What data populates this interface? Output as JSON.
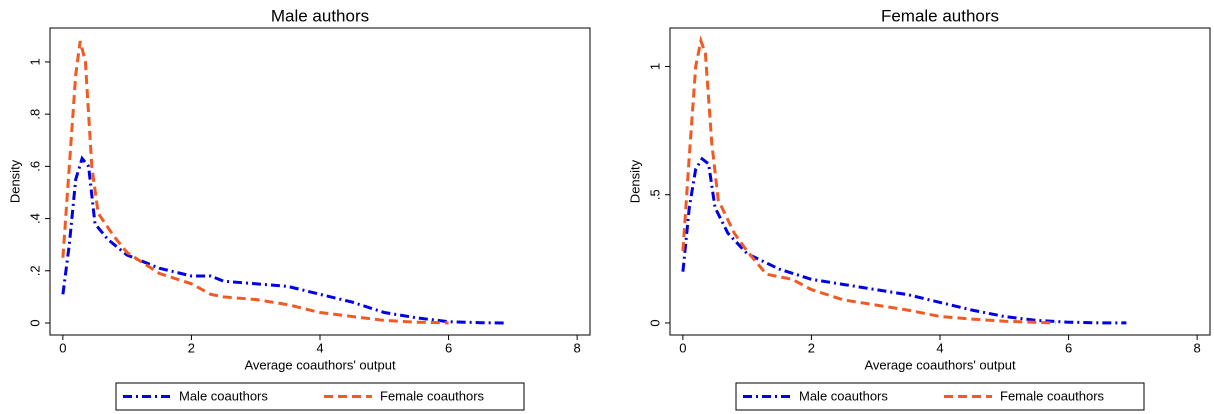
{
  "chart_data": [
    {
      "type": "line",
      "title": "Male authors",
      "xlabel": "Average coauthors' output",
      "ylabel": "Density",
      "xlim": [
        -0.2,
        8.2
      ],
      "ylim": [
        -0.046,
        1.13
      ],
      "xticks": [
        0,
        2,
        4,
        6,
        8
      ],
      "yticks": [
        0,
        {
          "value": 0.2,
          "label": ".2"
        },
        {
          "value": 0.4,
          "label": ".4"
        },
        {
          "value": 0.6,
          "label": ".6"
        },
        {
          "value": 0.8,
          "label": ".8"
        },
        1
      ],
      "legend": "bottom",
      "series": [
        {
          "name": "Male coauthors",
          "color": "#0000e6",
          "linestyle": "dashdot",
          "x": [
            0,
            0.1,
            0.2,
            0.3,
            0.4,
            0.5,
            0.7,
            1.0,
            1.5,
            2.0,
            2.3,
            2.5,
            3.0,
            3.5,
            4.0,
            4.5,
            5.0,
            5.5,
            6.0,
            6.5,
            6.9
          ],
          "values": [
            0.11,
            0.3,
            0.55,
            0.63,
            0.6,
            0.38,
            0.32,
            0.26,
            0.21,
            0.18,
            0.18,
            0.16,
            0.15,
            0.14,
            0.11,
            0.08,
            0.04,
            0.02,
            0.005,
            0.001,
            0
          ]
        },
        {
          "name": "Female coauthors",
          "color": "#f25a23",
          "linestyle": "dash",
          "x": [
            0,
            0.1,
            0.2,
            0.27,
            0.35,
            0.45,
            0.55,
            0.8,
            1.0,
            1.5,
            2.0,
            2.3,
            2.5,
            3.0,
            3.5,
            4.0,
            4.5,
            5.0,
            5.5,
            6.0
          ],
          "values": [
            0.25,
            0.6,
            0.95,
            1.08,
            1.0,
            0.6,
            0.42,
            0.33,
            0.27,
            0.19,
            0.15,
            0.11,
            0.1,
            0.09,
            0.07,
            0.04,
            0.025,
            0.01,
            0.003,
            0
          ]
        }
      ]
    },
    {
      "type": "line",
      "title": "Female authors",
      "xlabel": "Average coauthors' output",
      "ylabel": "Density",
      "xlim": [
        -0.2,
        8.2
      ],
      "ylim": [
        -0.047,
        1.15
      ],
      "xticks": [
        0,
        2,
        4,
        6,
        8
      ],
      "yticks": [
        0,
        {
          "value": 0.5,
          "label": ".5"
        },
        1
      ],
      "legend": "bottom",
      "series": [
        {
          "name": "Male coauthors",
          "color": "#0000e6",
          "linestyle": "dashdot",
          "x": [
            0,
            0.1,
            0.2,
            0.3,
            0.4,
            0.5,
            0.7,
            1.0,
            1.5,
            2.0,
            2.5,
            3.0,
            3.5,
            4.0,
            4.5,
            5.0,
            5.5,
            6.0,
            6.5,
            6.9
          ],
          "values": [
            0.2,
            0.45,
            0.6,
            0.64,
            0.62,
            0.45,
            0.35,
            0.27,
            0.21,
            0.17,
            0.15,
            0.13,
            0.11,
            0.08,
            0.05,
            0.025,
            0.01,
            0.003,
            0,
            0
          ]
        },
        {
          "name": "Female coauthors",
          "color": "#f25a23",
          "linestyle": "dash",
          "x": [
            0,
            0.1,
            0.2,
            0.28,
            0.35,
            0.45,
            0.55,
            0.8,
            1.0,
            1.3,
            1.7,
            2.0,
            2.5,
            3.0,
            3.5,
            4.0,
            4.5,
            5.0,
            5.5,
            5.8
          ],
          "values": [
            0.28,
            0.65,
            1.0,
            1.1,
            1.05,
            0.7,
            0.48,
            0.35,
            0.28,
            0.19,
            0.17,
            0.13,
            0.09,
            0.07,
            0.05,
            0.025,
            0.015,
            0.007,
            0.002,
            0
          ]
        }
      ]
    }
  ]
}
